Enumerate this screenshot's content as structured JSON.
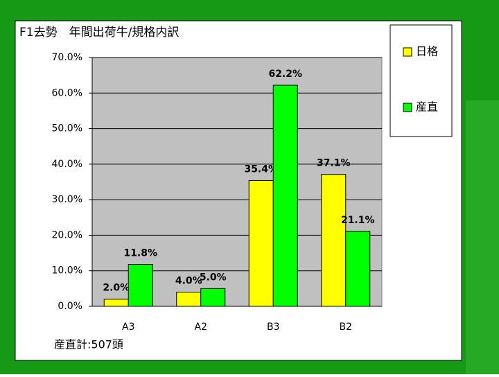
{
  "chart_data": {
    "type": "bar",
    "title": "F1去勢　年間出荷牛/規格内訳",
    "categories": [
      "A3",
      "A2",
      "B3",
      "B2"
    ],
    "series": [
      {
        "name": "日格",
        "color": "#ffff00",
        "values": [
          2.0,
          4.0,
          35.4,
          37.1
        ],
        "value_labels": [
          "2.0%",
          "4.0%",
          "35.4%",
          "37.1%"
        ]
      },
      {
        "name": "産直",
        "color": "#00ff00",
        "values": [
          11.8,
          5.0,
          62.2,
          21.1
        ],
        "value_labels": [
          "11.8%",
          "5.0%",
          "62.2%",
          "21.1%"
        ]
      }
    ],
    "ylim": [
      0,
      70
    ],
    "yticks": [
      {
        "value": 0,
        "label": "0.0%"
      },
      {
        "value": 10,
        "label": "10.0%"
      },
      {
        "value": 20,
        "label": "20.0%"
      },
      {
        "value": 30,
        "label": "30.0%"
      },
      {
        "value": 40,
        "label": "40.0%"
      },
      {
        "value": 50,
        "label": "50.0%"
      },
      {
        "value": 60,
        "label": "60.0%"
      },
      {
        "value": 70,
        "label": "70.0%"
      }
    ],
    "grid": true,
    "legend": "right",
    "note": "産直計:507頭"
  }
}
